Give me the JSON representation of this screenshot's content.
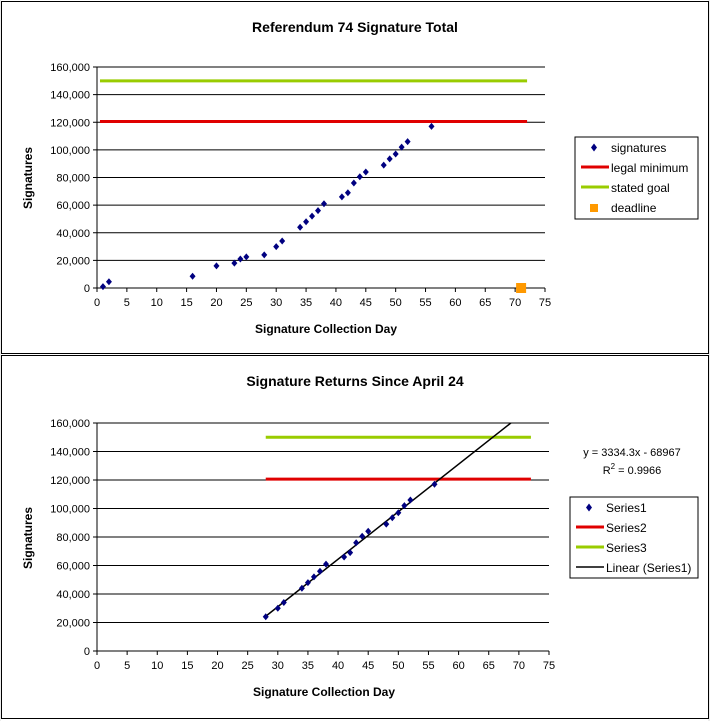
{
  "colors": {
    "signatures": "#000080",
    "legal_minimum": "#e00000",
    "stated_goal": "#99cc00",
    "deadline": "#ff9900",
    "trendline": "#000000"
  },
  "chart_data": [
    {
      "type": "scatter",
      "title": "Referendum 74 Signature Total",
      "xlabel": "Signature Collection Day",
      "ylabel": "Signatures",
      "xlim": [
        0,
        75
      ],
      "ylim": [
        0,
        160000
      ],
      "x_ticks": [
        "0",
        "5",
        "10",
        "15",
        "20",
        "25",
        "30",
        "35",
        "40",
        "45",
        "50",
        "55",
        "60",
        "65",
        "70",
        "75"
      ],
      "y_ticks": [
        "0",
        "20,000",
        "40,000",
        "60,000",
        "80,000",
        "100,000",
        "120,000",
        "140,000",
        "160,000"
      ],
      "grid": "horizontal",
      "legend_position": "right",
      "legend": [
        "signatures",
        "legal minimum",
        "stated goal",
        "deadline"
      ],
      "series": [
        {
          "name": "signatures",
          "kind": "points",
          "x": [
            1,
            2,
            16,
            20,
            23,
            24,
            25,
            28,
            30,
            31,
            34,
            35,
            36,
            37,
            38,
            41,
            42,
            43,
            44,
            45,
            48,
            49,
            50,
            51,
            52,
            56
          ],
          "y": [
            1000,
            4500,
            8500,
            16000,
            18000,
            21000,
            22500,
            24000,
            30000,
            34000,
            44000,
            48000,
            52000,
            56000,
            61000,
            66000,
            69000,
            76000,
            80500,
            84000,
            89000,
            93500,
            97000,
            102000,
            106000,
            117000
          ]
        },
        {
          "name": "legal minimum",
          "kind": "line",
          "x": [
            0.5,
            72
          ],
          "y": [
            120577,
            120577
          ]
        },
        {
          "name": "stated goal",
          "kind": "line",
          "x": [
            0.5,
            72
          ],
          "y": [
            150000,
            150000
          ]
        },
        {
          "name": "deadline",
          "kind": "square",
          "x": [
            71
          ],
          "y": [
            0
          ]
        }
      ]
    },
    {
      "type": "scatter",
      "title": "Signature Returns Since April 24",
      "xlabel": "Signature Collection Day",
      "ylabel": "Signatures",
      "xlim": [
        0,
        75
      ],
      "ylim": [
        0,
        160000
      ],
      "x_ticks": [
        "0",
        "5",
        "10",
        "15",
        "20",
        "25",
        "30",
        "35",
        "40",
        "45",
        "50",
        "55",
        "60",
        "65",
        "70",
        "75"
      ],
      "y_ticks": [
        "0",
        "20,000",
        "40,000",
        "60,000",
        "80,000",
        "100,000",
        "120,000",
        "140,000",
        "160,000"
      ],
      "grid": "horizontal",
      "legend_position": "right",
      "legend": [
        "Series1",
        "Series2",
        "Series3",
        "Linear (Series1)"
      ],
      "trendline_equation": "y = 3334.3x - 68967",
      "r_squared_label": "R",
      "r_squared_exp": "2",
      "r_squared_value": " = 0.9966",
      "series": [
        {
          "name": "Series1",
          "kind": "points",
          "x": [
            28,
            30,
            31,
            34,
            35,
            36,
            37,
            38,
            41,
            42,
            43,
            44,
            45,
            48,
            49,
            50,
            51,
            52,
            56
          ],
          "y": [
            24000,
            30000,
            34000,
            44000,
            48000,
            52000,
            56000,
            61000,
            66000,
            69000,
            76000,
            80500,
            84000,
            89000,
            93500,
            97000,
            102000,
            106000,
            117000
          ]
        },
        {
          "name": "Series2",
          "kind": "line",
          "x": [
            28,
            72
          ],
          "y": [
            120577,
            120577
          ]
        },
        {
          "name": "Series3",
          "kind": "line",
          "x": [
            28,
            72
          ],
          "y": [
            150000,
            150000
          ]
        },
        {
          "name": "Linear (Series1)",
          "kind": "trend",
          "slope": 3334.3,
          "intercept": -68967,
          "x": [
            28,
            72
          ]
        }
      ]
    }
  ]
}
